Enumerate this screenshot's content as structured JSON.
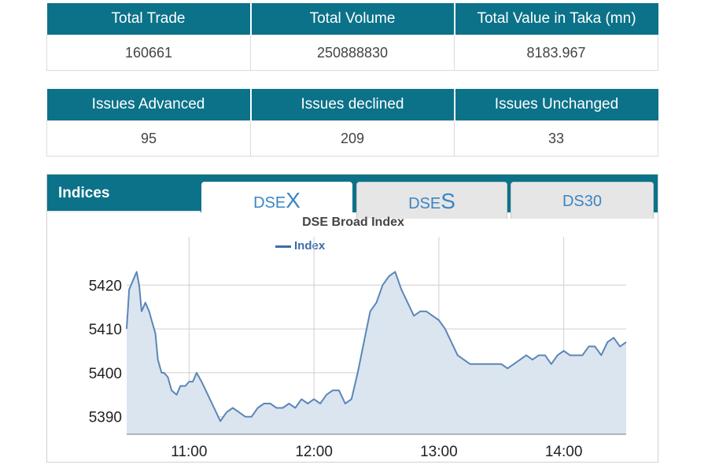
{
  "market_summary": {
    "headers": [
      "Total Trade",
      "Total Volume",
      "Total Value in Taka (mn)"
    ],
    "values": [
      "160661",
      "250888830",
      "8183.967"
    ]
  },
  "issues_summary": {
    "headers": [
      "Issues Advanced",
      "Issues declined",
      "Issues Unchanged"
    ],
    "values": [
      "95",
      "209",
      "33"
    ]
  },
  "indices": {
    "title": "Indices",
    "tabs": [
      {
        "prefix": "DSE",
        "suffix": "X",
        "active": true
      },
      {
        "prefix": "DSE",
        "suffix": "S",
        "active": false
      },
      {
        "prefix": "DS30",
        "suffix": "",
        "active": false
      }
    ]
  },
  "colors": {
    "header_bg": "#0b7289",
    "line": "#5b86b8",
    "area": "#dbe5ef",
    "tab_text": "#3a86c4"
  },
  "chart_data": {
    "type": "area",
    "title": "DSE Broad Index",
    "legend": [
      "Index"
    ],
    "xlabel": "",
    "ylabel": "",
    "x_ticks": [
      "11:00",
      "12:00",
      "13:00",
      "14:00"
    ],
    "y_ticks": [
      5390,
      5400,
      5410,
      5420
    ],
    "ylim": [
      5386,
      5431
    ],
    "xlim_hours": [
      10.5,
      14.5
    ],
    "grid": true,
    "series": [
      {
        "name": "Index",
        "x": [
          10.5,
          10.52,
          10.55,
          10.58,
          10.6,
          10.62,
          10.65,
          10.68,
          10.7,
          10.73,
          10.75,
          10.78,
          10.8,
          10.83,
          10.86,
          10.9,
          10.93,
          10.97,
          11.0,
          11.03,
          11.06,
          11.1,
          11.15,
          11.2,
          11.25,
          11.3,
          11.35,
          11.4,
          11.45,
          11.5,
          11.55,
          11.6,
          11.65,
          11.7,
          11.75,
          11.8,
          11.85,
          11.9,
          11.95,
          12.0,
          12.05,
          12.1,
          12.15,
          12.2,
          12.25,
          12.3,
          12.35,
          12.4,
          12.45,
          12.5,
          12.55,
          12.6,
          12.65,
          12.7,
          12.75,
          12.8,
          12.85,
          12.9,
          12.95,
          13.0,
          13.05,
          13.1,
          13.15,
          13.2,
          13.25,
          13.3,
          13.4,
          13.5,
          13.55,
          13.6,
          13.65,
          13.7,
          13.75,
          13.8,
          13.85,
          13.9,
          13.95,
          14.0,
          14.05,
          14.1,
          14.15,
          14.2,
          14.25,
          14.3,
          14.35,
          14.4,
          14.45,
          14.5
        ],
        "y": [
          5410,
          5419,
          5421,
          5423,
          5420,
          5414,
          5416,
          5414,
          5412,
          5409,
          5403,
          5400,
          5400,
          5399,
          5396,
          5395,
          5397,
          5397,
          5398,
          5398,
          5400,
          5398,
          5395,
          5392,
          5389,
          5391,
          5392,
          5391,
          5390,
          5390,
          5392,
          5393,
          5393,
          5392,
          5392,
          5393,
          5392,
          5394,
          5393,
          5394,
          5393,
          5395,
          5396,
          5396,
          5393,
          5394,
          5400,
          5407,
          5414,
          5416,
          5420,
          5422,
          5423,
          5419,
          5416,
          5413,
          5414,
          5414,
          5413,
          5412,
          5410,
          5407,
          5404,
          5403,
          5402,
          5402,
          5402,
          5402,
          5401,
          5402,
          5403,
          5404,
          5403,
          5404,
          5404,
          5402,
          5404,
          5405,
          5404,
          5404,
          5404,
          5406,
          5406,
          5404,
          5407,
          5408,
          5406,
          5407
        ]
      }
    ]
  }
}
